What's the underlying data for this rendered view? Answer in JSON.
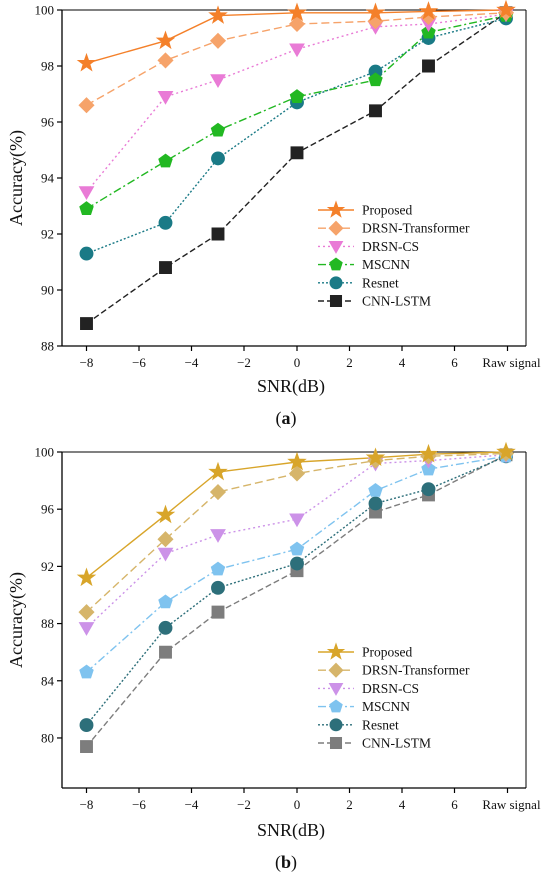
{
  "chart_data": [
    {
      "type": "line",
      "panel_label": "a",
      "xlabel": "SNR(dB)",
      "ylabel": "Accuracy(%)",
      "x_tick_labels": [
        "−8",
        "−6",
        "−4",
        "−2",
        "0",
        "2",
        "4",
        "6",
        "Raw signal"
      ],
      "x_values": [
        -8,
        -5,
        -3,
        0,
        3,
        5,
        "Raw signal"
      ],
      "y_ticks": [
        88,
        90,
        92,
        94,
        96,
        98,
        100
      ],
      "ylim": [
        88,
        100
      ],
      "legend_position": "lower-right",
      "series": [
        {
          "name": "Proposed",
          "color": "#f4802a",
          "marker": "star",
          "dash": "",
          "values": [
            98.1,
            98.9,
            99.8,
            99.9,
            99.9,
            99.95,
            100.0
          ]
        },
        {
          "name": "DRSN-Transformer",
          "color": "#f6a36a",
          "marker": "diamond",
          "dash": "8,4",
          "values": [
            96.6,
            98.2,
            98.9,
            99.5,
            99.6,
            99.75,
            99.9
          ]
        },
        {
          "name": "DRSN-CS",
          "color": "#e97bd6",
          "marker": "triangle-down",
          "dash": "2,3",
          "values": [
            93.5,
            96.9,
            97.5,
            98.6,
            99.4,
            99.5,
            99.85
          ]
        },
        {
          "name": "MSCNN",
          "color": "#22b822",
          "marker": "pentagon",
          "dash": "8,3,2,3",
          "values": [
            92.9,
            94.6,
            95.7,
            96.9,
            97.5,
            99.2,
            99.8
          ]
        },
        {
          "name": "Resnet",
          "color": "#1a7a86",
          "marker": "circle",
          "dash": "2,2",
          "values": [
            91.3,
            92.4,
            94.7,
            96.7,
            97.8,
            99.0,
            99.7
          ]
        },
        {
          "name": "CNN-LSTM",
          "color": "#222222",
          "marker": "square",
          "dash": "6,3",
          "values": [
            88.8,
            90.8,
            92.0,
            94.9,
            96.4,
            98.0,
            99.9
          ]
        }
      ]
    },
    {
      "type": "line",
      "panel_label": "b",
      "xlabel": "SNR(dB)",
      "ylabel": "Accuracy(%)",
      "x_tick_labels": [
        "−8",
        "−6",
        "−4",
        "−2",
        "0",
        "2",
        "4",
        "6",
        "Raw signal"
      ],
      "x_values": [
        -8,
        -5,
        -3,
        0,
        3,
        5,
        "Raw signal"
      ],
      "y_ticks": [
        80,
        84,
        88,
        92,
        96,
        100
      ],
      "ylim": [
        76.5,
        100
      ],
      "legend_position": "lower-right",
      "series": [
        {
          "name": "Proposed",
          "color": "#d8a52a",
          "marker": "star",
          "dash": "",
          "values": [
            91.2,
            95.6,
            98.6,
            99.3,
            99.6,
            99.85,
            100.0
          ]
        },
        {
          "name": "DRSN-Transformer",
          "color": "#d6b56a",
          "marker": "diamond",
          "dash": "8,4",
          "values": [
            88.8,
            93.9,
            97.2,
            98.5,
            99.4,
            99.7,
            99.9
          ]
        },
        {
          "name": "DRSN-CS",
          "color": "#cc92e8",
          "marker": "triangle-down",
          "dash": "2,3",
          "values": [
            87.7,
            92.9,
            94.2,
            95.3,
            99.2,
            99.4,
            99.8
          ]
        },
        {
          "name": "MSCNN",
          "color": "#7fc3ef",
          "marker": "pentagon",
          "dash": "8,3,2,3",
          "values": [
            84.6,
            89.5,
            91.8,
            93.2,
            97.3,
            98.8,
            99.7
          ]
        },
        {
          "name": "Resnet",
          "color": "#2d6f7a",
          "marker": "circle",
          "dash": "2,2",
          "values": [
            80.9,
            87.7,
            90.5,
            92.2,
            96.4,
            97.4,
            99.7
          ]
        },
        {
          "name": "CNN-LSTM",
          "color": "#7d7d7d",
          "marker": "square",
          "dash": "6,3",
          "values": [
            79.4,
            86.0,
            88.8,
            91.7,
            95.8,
            97.0,
            99.8
          ]
        }
      ]
    }
  ]
}
